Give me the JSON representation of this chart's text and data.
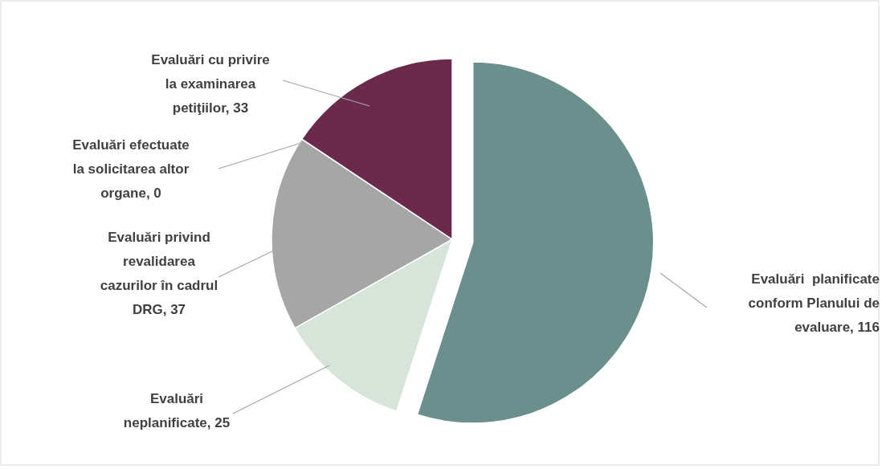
{
  "chart_data": {
    "type": "pie",
    "categories": [
      "Evaluări  planificate conform Planului de evaluare, 116",
      "Evaluări neplanificate, 25",
      "Evaluări privind revalidarea cazurilor în cadrul DRG, 37",
      "Evaluări efectuate la solicitarea altor organe, 0",
      "Evaluări cu privire la examinarea petiţiilor, 33"
    ],
    "values": [
      116,
      25,
      37,
      0,
      33
    ],
    "colors": [
      "#6a8f8d",
      "#d6e4d9",
      "#a6a6a6",
      "#7f7f7f",
      "#6b2a4b"
    ]
  }
}
